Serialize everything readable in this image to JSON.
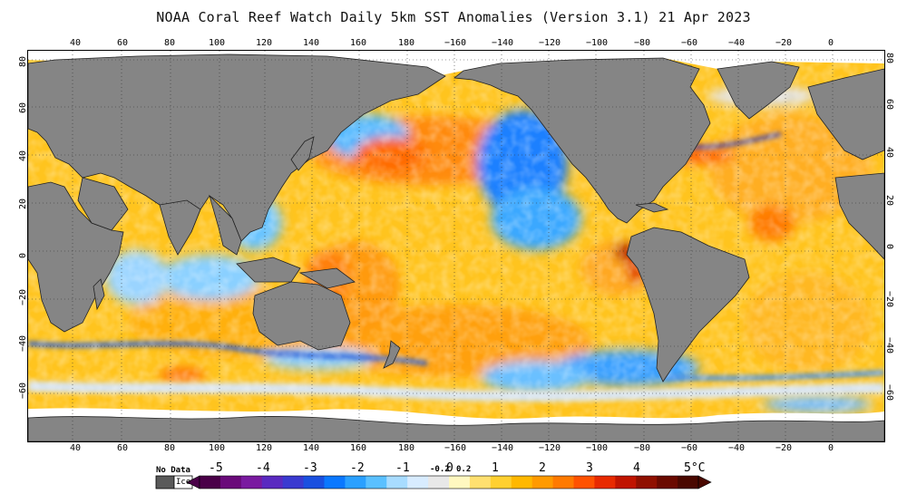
{
  "title": "NOAA Coral Reef Watch Daily 5km SST Anomalies (Version 3.1)  21 Apr 2023",
  "lon_ticks": [
    "40",
    "60",
    "80",
    "100",
    "120",
    "140",
    "160",
    "180",
    "−160",
    "−140",
    "−120",
    "−100",
    "−80",
    "−60",
    "−40",
    "−20",
    "0"
  ],
  "lat_ticks_left": [
    "80",
    "60",
    "40",
    "20",
    "0",
    "−20",
    "−40",
    "−60"
  ],
  "lat_ticks_right": [
    "80",
    "60",
    "40",
    "20",
    "0",
    "−20",
    "−40",
    "−60"
  ],
  "legend": {
    "no_data": "No Data",
    "ice": "Ice",
    "labels": [
      "-5",
      "-4",
      "-3",
      "-2",
      "-1",
      "-0.2",
      "0",
      "0.2",
      "1",
      "2",
      "3",
      "4",
      "5°C"
    ]
  },
  "colors": {
    "land": "#858585",
    "ice": "#ffffff",
    "no_data": "#5a5a5a",
    "neutral": "#e8e8e8",
    "warm_light": "#fff0a0",
    "warm_1": "#ffd23c",
    "warm_2": "#ffaa00",
    "warm_3": "#ff6a00",
    "warm_4": "#d42a00",
    "warm_5": "#7a1200",
    "cool_light": "#a8d8ff",
    "cool_1": "#3ab0ff",
    "cool_2": "#0a64ff",
    "cool_3": "#2a2ad0",
    "cool_4": "#4a1aa0",
    "cool_5": "#5a0a6a"
  }
}
